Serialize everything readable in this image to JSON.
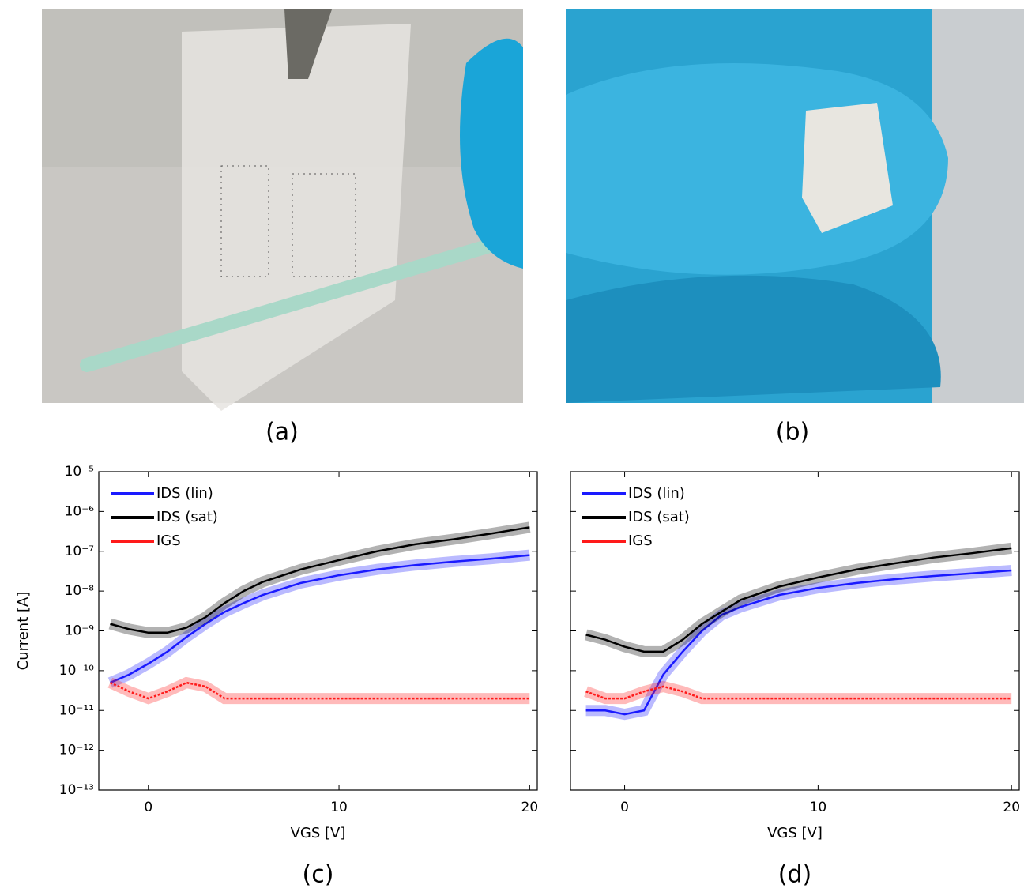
{
  "photos": [
    {
      "caption": "(a)"
    },
    {
      "caption": "(b)"
    }
  ],
  "chart_data": [
    {
      "type": "line",
      "caption": "(c)",
      "xlabel": "VGS [V]",
      "ylabel": "Current [A]",
      "log_y": true,
      "legend": "upper left",
      "xlim": [
        -2.6,
        20.4
      ],
      "xticks": [
        0,
        10,
        20
      ],
      "ylim": [
        1e-13,
        1e-05
      ],
      "yticks": [
        {
          "value": 1e-13,
          "label": "10⁻¹³"
        },
        {
          "value": 1e-12,
          "label": "10⁻¹²"
        },
        {
          "value": 1e-11,
          "label": "10⁻¹¹"
        },
        {
          "value": 1e-10,
          "label": "10⁻¹⁰"
        },
        {
          "value": 1e-09,
          "label": "10⁻⁹"
        },
        {
          "value": 1e-08,
          "label": "10⁻⁸"
        },
        {
          "value": 1e-07,
          "label": "10⁻⁷"
        },
        {
          "value": 1e-06,
          "label": "10⁻⁶"
        },
        {
          "value": 1e-05,
          "label": "10⁻⁵"
        }
      ],
      "x": [
        -2,
        -1,
        0,
        1,
        2,
        3,
        4,
        5,
        6,
        8,
        10,
        12,
        14,
        16,
        18,
        20
      ],
      "series": [
        {
          "name": "IDS (lin)",
          "color": "#1a1aff",
          "values": [
            5e-11,
            8e-11,
            1.5e-10,
            3e-10,
            7e-10,
            1.5e-09,
            3e-09,
            5e-09,
            8e-09,
            1.6e-08,
            2.5e-08,
            3.5e-08,
            4.5e-08,
            5.5e-08,
            6.5e-08,
            8e-08
          ]
        },
        {
          "name": "IDS (sat)",
          "color": "#000000",
          "values": [
            1.5e-09,
            1.1e-09,
            9e-10,
            9e-10,
            1.2e-09,
            2.2e-09,
            5e-09,
            1e-08,
            1.7e-08,
            3.5e-08,
            6e-08,
            1e-07,
            1.5e-07,
            2e-07,
            2.8e-07,
            4e-07
          ]
        },
        {
          "name": "IGS",
          "color": "#ff1a1a",
          "values": [
            5e-11,
            3e-11,
            2e-11,
            3e-11,
            5e-11,
            4e-11,
            2e-11,
            2e-11,
            2e-11,
            2e-11,
            2e-11,
            2e-11,
            2e-11,
            2e-11,
            2e-11,
            2e-11
          ]
        }
      ]
    },
    {
      "type": "line",
      "caption": "(d)",
      "xlabel": "VGS [V]",
      "log_y": true,
      "legend": "upper left",
      "xlim": [
        -2.8,
        20.4
      ],
      "xticks": [
        0,
        10,
        20
      ],
      "ylim": [
        1e-13,
        1e-05
      ],
      "yticks": [
        1e-13,
        1e-12,
        1e-11,
        1e-10,
        1e-09,
        1e-08,
        1e-07,
        1e-06,
        1e-05
      ],
      "x": [
        -2,
        -1,
        0,
        1,
        2,
        3,
        4,
        5,
        6,
        8,
        10,
        12,
        14,
        16,
        18,
        20
      ],
      "series": [
        {
          "name": "IDS (lin)",
          "color": "#1a1aff",
          "values": [
            1e-11,
            1e-11,
            8e-12,
            1e-11,
            8e-11,
            3e-10,
            1e-09,
            2.5e-09,
            4e-09,
            8e-09,
            1.2e-08,
            1.6e-08,
            2e-08,
            2.4e-08,
            2.8e-08,
            3.3e-08
          ]
        },
        {
          "name": "IDS (sat)",
          "color": "#000000",
          "values": [
            8e-10,
            6e-10,
            4e-10,
            3e-10,
            3e-10,
            6e-10,
            1.5e-09,
            3e-09,
            6e-09,
            1.3e-08,
            2.2e-08,
            3.5e-08,
            5e-08,
            7e-08,
            9e-08,
            1.2e-07
          ]
        },
        {
          "name": "IGS",
          "color": "#ff1a1a",
          "values": [
            3e-11,
            2e-11,
            2e-11,
            3e-11,
            4e-11,
            3e-11,
            2e-11,
            2e-11,
            2e-11,
            2e-11,
            2e-11,
            2e-11,
            2e-11,
            2e-11,
            2e-11,
            2e-11
          ]
        }
      ]
    }
  ]
}
